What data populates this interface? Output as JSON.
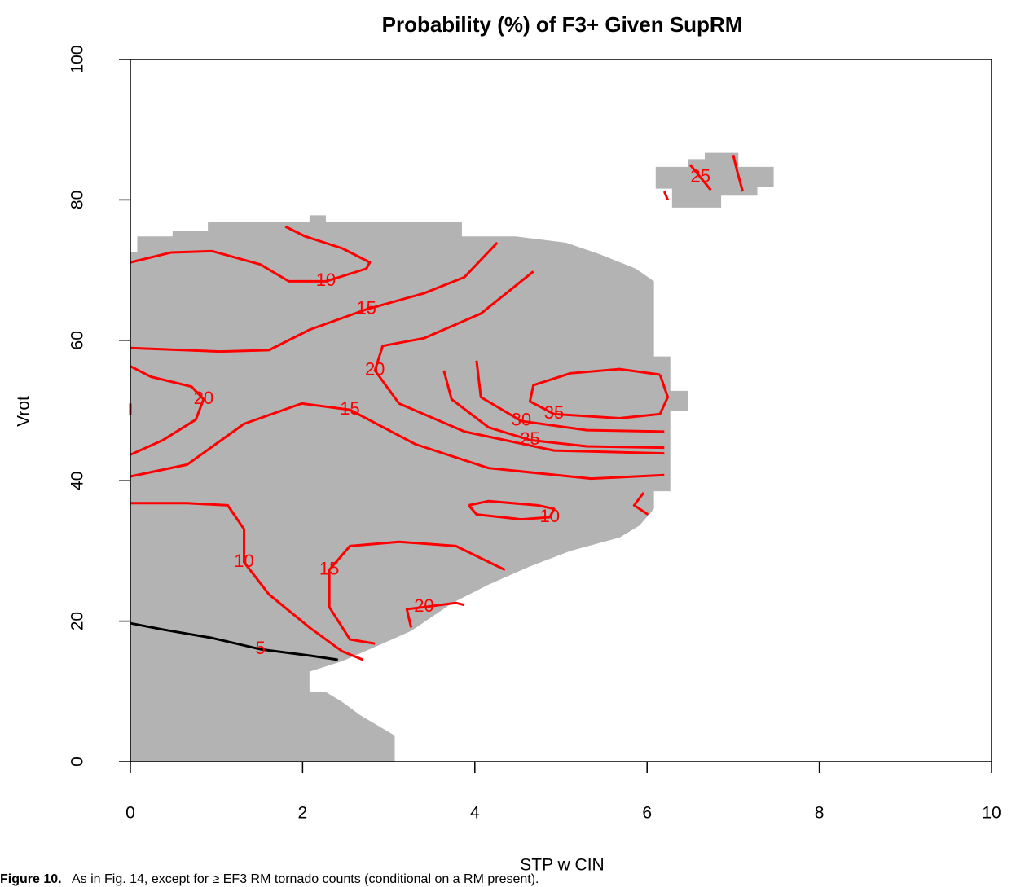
{
  "chart_data": {
    "type": "contour",
    "title": "Probability (%) of F3+ Given SupRM",
    "x_label": "STP w CIN",
    "y_label": "Vrot",
    "caption_lead": "Figure 10.",
    "caption": "As in Fig. 14, except for ≥ EF3 RM tornado counts (conditional on a RM present).",
    "xlim": [
      0,
      10
    ],
    "xticks": [
      0,
      2,
      4,
      6,
      8,
      10
    ],
    "ylim": [
      0,
      100
    ],
    "yticks": [
      0,
      20,
      40,
      60,
      80,
      100
    ],
    "region_color": "#b3b3b3",
    "label_color": "#ff0000",
    "regions": [
      {
        "x": [
          0,
          3.07,
          3.07,
          2.67,
          2.46,
          2.27,
          2.08,
          2.08,
          2.46,
          2.93,
          3.26,
          3.74,
          4.16,
          4.64,
          5.11,
          5.68,
          5.91,
          6.08,
          6.08,
          6.27,
          6.27,
          6.48,
          6.48,
          6.27,
          6.27,
          6.08,
          6.08,
          5.87,
          5.44,
          5.06,
          4.47,
          3.85,
          3.85,
          2.27,
          2.27,
          2.08,
          2.08,
          0.9,
          0.9,
          0.49,
          0.49,
          0.08,
          0.08,
          0
        ],
        "y": [
          0,
          0,
          3.7,
          6.6,
          8.5,
          9.9,
          9.9,
          12.8,
          14.3,
          16.8,
          18.6,
          22.6,
          25.2,
          27.8,
          30.0,
          31.9,
          33.6,
          36.0,
          38.5,
          38.5,
          49.9,
          49.9,
          52.8,
          52.8,
          57.7,
          57.7,
          68.4,
          70.2,
          72.3,
          73.9,
          74.8,
          74.8,
          76.8,
          76.8,
          77.8,
          77.8,
          76.8,
          76.8,
          75.6,
          75.6,
          74.8,
          74.8,
          72.5,
          72.5
        ]
      },
      {
        "x": [
          6.1,
          6.48,
          6.48,
          6.67,
          6.67,
          7.06,
          7.06,
          7.47,
          7.47,
          7.28,
          7.28,
          6.86,
          6.86,
          6.29,
          6.29,
          6.1
        ],
        "y": [
          84.7,
          84.7,
          85.8,
          85.8,
          86.7,
          86.7,
          84.7,
          84.7,
          81.8,
          81.8,
          80.6,
          80.6,
          78.9,
          78.9,
          81.6,
          81.6
        ]
      }
    ],
    "contours": [
      {
        "level": 10,
        "color": "#ff0000",
        "x": [
          0,
          0.47,
          0.95,
          1.51,
          1.84,
          2.27,
          2.74,
          2.78,
          2.46,
          2.03,
          1.8
        ],
        "y": [
          71.1,
          72.5,
          72.7,
          70.8,
          68.4,
          68.4,
          70.2,
          71.1,
          73.1,
          74.8,
          76.2
        ]
      },
      {
        "level": 15,
        "color": "#ff0000",
        "x": [
          0,
          1.04,
          1.61,
          2.08,
          2.74,
          3.41,
          3.88,
          4.26
        ],
        "y": [
          58.9,
          58.4,
          58.6,
          61.5,
          64.4,
          66.7,
          69.0,
          73.9
        ]
      },
      {
        "level": 20,
        "color": "#ff0000",
        "x": [
          0,
          0.24,
          0.71,
          0.85,
          0.76,
          0.38,
          0,
          null,
          0,
          0
        ],
        "y": [
          56.3,
          54.8,
          53.4,
          51.6,
          48.7,
          45.8,
          43.7,
          null,
          51.0,
          49.3
        ]
      },
      {
        "level": 20,
        "color": "#ff0000",
        "x": [
          4.68,
          4.07,
          3.41,
          2.93,
          2.84,
          3.12,
          3.88,
          4.92,
          6.2
        ],
        "y": [
          69.8,
          63.8,
          60.3,
          59.2,
          55.7,
          51.0,
          47.0,
          44.3,
          43.9
        ]
      },
      {
        "level": 35,
        "color": "#ff0000",
        "x": [
          6.15,
          5.68,
          5.11,
          4.68,
          4.64,
          4.92,
          5.68,
          6.15,
          6.24,
          6.15
        ],
        "y": [
          55.1,
          55.9,
          55.3,
          53.6,
          51.3,
          49.5,
          48.9,
          49.5,
          51.9,
          55.1
        ]
      },
      {
        "level": 25,
        "color": "#ff0000",
        "x": [
          3.64,
          3.73,
          4.16,
          4.64,
          5.3,
          6.2
        ],
        "y": [
          55.7,
          51.6,
          47.6,
          45.8,
          44.9,
          44.7
        ]
      },
      {
        "level": 30,
        "color": "#ff0000",
        "x": [
          4.02,
          4.07,
          4.54,
          5.3,
          6.2
        ],
        "y": [
          57.1,
          51.9,
          48.5,
          47.2,
          47.0
        ]
      },
      {
        "level": 15,
        "color": "#ff0000",
        "x": [
          0,
          0.66,
          1.32,
          1.99,
          2.55,
          3.31,
          4.16,
          5.35,
          6.2,
          null,
          5.96,
          5.85,
          6.01
        ],
        "y": [
          40.6,
          42.3,
          48.1,
          51.0,
          50.1,
          45.2,
          41.8,
          40.3,
          40.8,
          null,
          38.3,
          36.5,
          35.2
        ]
      },
      {
        "level": 10,
        "color": "#ff0000",
        "x": [
          0,
          0.66,
          1.13,
          1.32,
          1.32,
          1.61,
          2.08,
          2.46,
          2.7
        ],
        "y": [
          36.8,
          36.8,
          36.5,
          33.1,
          28.4,
          23.8,
          19.1,
          15.7,
          14.5
        ]
      },
      {
        "level": 10,
        "color": "#ff0000",
        "x": [
          3.93,
          4.16,
          4.73,
          4.92,
          4.87,
          4.54,
          4.02,
          3.93
        ],
        "y": [
          36.5,
          37.1,
          36.5,
          36.0,
          34.8,
          34.5,
          35.2,
          36.5
        ]
      },
      {
        "level": 15,
        "color": "#ff0000",
        "x": [
          4.35,
          3.78,
          3.12,
          2.55,
          2.31,
          2.31,
          2.55,
          2.84
        ],
        "y": [
          27.3,
          30.7,
          31.3,
          30.7,
          27.3,
          22.0,
          17.4,
          16.8
        ]
      },
      {
        "level": 20,
        "color": "#ff0000",
        "x": [
          3.26,
          3.21,
          3.41,
          3.78,
          3.88
        ],
        "y": [
          19.1,
          21.7,
          22.0,
          22.6,
          22.3
        ]
      },
      {
        "level": 5,
        "color": "#000000",
        "x": [
          0,
          0.38,
          0.95,
          1.51,
          2.08,
          2.41
        ],
        "y": [
          19.7,
          18.8,
          17.6,
          16.0,
          15.1,
          14.5
        ]
      },
      {
        "level": 25,
        "color": "#ff0000",
        "x": [
          6.5,
          6.62,
          6.74,
          null,
          6.2,
          6.24,
          null,
          7.0,
          7.05,
          7.11
        ],
        "y": [
          85.0,
          83.2,
          81.4,
          null,
          81.2,
          80.0,
          null,
          86.4,
          83.9,
          81.2
        ]
      }
    ]
  }
}
